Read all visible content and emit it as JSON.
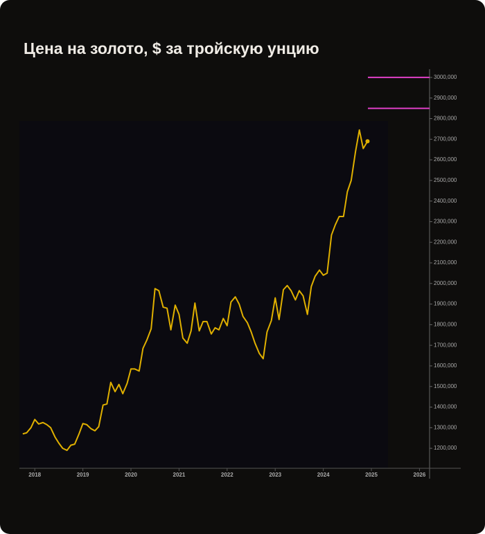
{
  "chart_data": {
    "type": "line",
    "title": "Цена на золото, $ за тройскую унцию",
    "x": [
      2017.75,
      2017.83,
      2017.92,
      2018.0,
      2018.08,
      2018.17,
      2018.25,
      2018.33,
      2018.42,
      2018.5,
      2018.58,
      2018.67,
      2018.75,
      2018.83,
      2018.92,
      2019.0,
      2019.08,
      2019.17,
      2019.25,
      2019.33,
      2019.42,
      2019.5,
      2019.58,
      2019.67,
      2019.75,
      2019.83,
      2019.92,
      2020.0,
      2020.08,
      2020.17,
      2020.25,
      2020.33,
      2020.42,
      2020.5,
      2020.58,
      2020.67,
      2020.75,
      2020.83,
      2020.92,
      2021.0,
      2021.08,
      2021.17,
      2021.25,
      2021.33,
      2021.42,
      2021.5,
      2021.58,
      2021.67,
      2021.75,
      2021.83,
      2021.92,
      2022.0,
      2022.08,
      2022.17,
      2022.25,
      2022.33,
      2022.42,
      2022.5,
      2022.58,
      2022.67,
      2022.75,
      2022.83,
      2022.92,
      2023.0,
      2023.08,
      2023.17,
      2023.25,
      2023.33,
      2023.42,
      2023.5,
      2023.58,
      2023.67,
      2023.75,
      2023.83,
      2023.92,
      2024.0,
      2024.08,
      2024.17,
      2024.25,
      2024.33,
      2024.42,
      2024.5,
      2024.58,
      2024.67,
      2024.75,
      2024.83,
      2024.92
    ],
    "series": [
      {
        "color": "#e0b000",
        "values": [
          1270,
          1275,
          1300,
          1340,
          1318,
          1325,
          1315,
          1300,
          1255,
          1225,
          1200,
          1190,
          1215,
          1220,
          1270,
          1320,
          1315,
          1295,
          1285,
          1305,
          1410,
          1415,
          1520,
          1475,
          1510,
          1465,
          1515,
          1585,
          1585,
          1575,
          1685,
          1725,
          1780,
          1975,
          1965,
          1885,
          1880,
          1775,
          1895,
          1850,
          1735,
          1710,
          1770,
          1905,
          1770,
          1815,
          1815,
          1755,
          1785,
          1775,
          1830,
          1795,
          1910,
          1935,
          1900,
          1840,
          1810,
          1765,
          1710,
          1660,
          1635,
          1765,
          1820,
          1930,
          1825,
          1970,
          1990,
          1965,
          1920,
          1965,
          1940,
          1850,
          1985,
          2035,
          2065,
          2040,
          2050,
          2235,
          2285,
          2325,
          2325,
          2445,
          2500,
          2640,
          2745,
          2655,
          2690
        ]
      }
    ],
    "xlim": [
      2017.68,
      2026.21
    ],
    "xticks": [
      2018,
      2019,
      2020,
      2021,
      2022,
      2023,
      2024,
      2025,
      2026
    ],
    "ylim": [
      1103,
      3030
    ],
    "yticks": [
      {
        "value": 1200,
        "label": "1200,000"
      },
      {
        "value": 1300,
        "label": "1300,000"
      },
      {
        "value": 1400,
        "label": "1400,000"
      },
      {
        "value": 1500,
        "label": "1500,000"
      },
      {
        "value": 1600,
        "label": "1600,000"
      },
      {
        "value": 1700,
        "label": "1700,000"
      },
      {
        "value": 1800,
        "label": "1800,000"
      },
      {
        "value": 1900,
        "label": "1900,000"
      },
      {
        "value": 2000,
        "label": "2000,000"
      },
      {
        "value": 2100,
        "label": "2100,000"
      },
      {
        "value": 2200,
        "label": "2200,000"
      },
      {
        "value": 2300,
        "label": "2300,000"
      },
      {
        "value": 2400,
        "label": "2400,000"
      },
      {
        "value": 2500,
        "label": "2500,000"
      },
      {
        "value": 2600,
        "label": "2600,000"
      },
      {
        "value": 2700,
        "label": "2700,000"
      },
      {
        "value": 2800,
        "label": "2800,000"
      },
      {
        "value": 2900,
        "label": "2900,000"
      },
      {
        "value": 3000,
        "label": "3000,000"
      }
    ],
    "reference_lines": [
      3000,
      2850
    ],
    "reference_color": "#e040c8"
  }
}
